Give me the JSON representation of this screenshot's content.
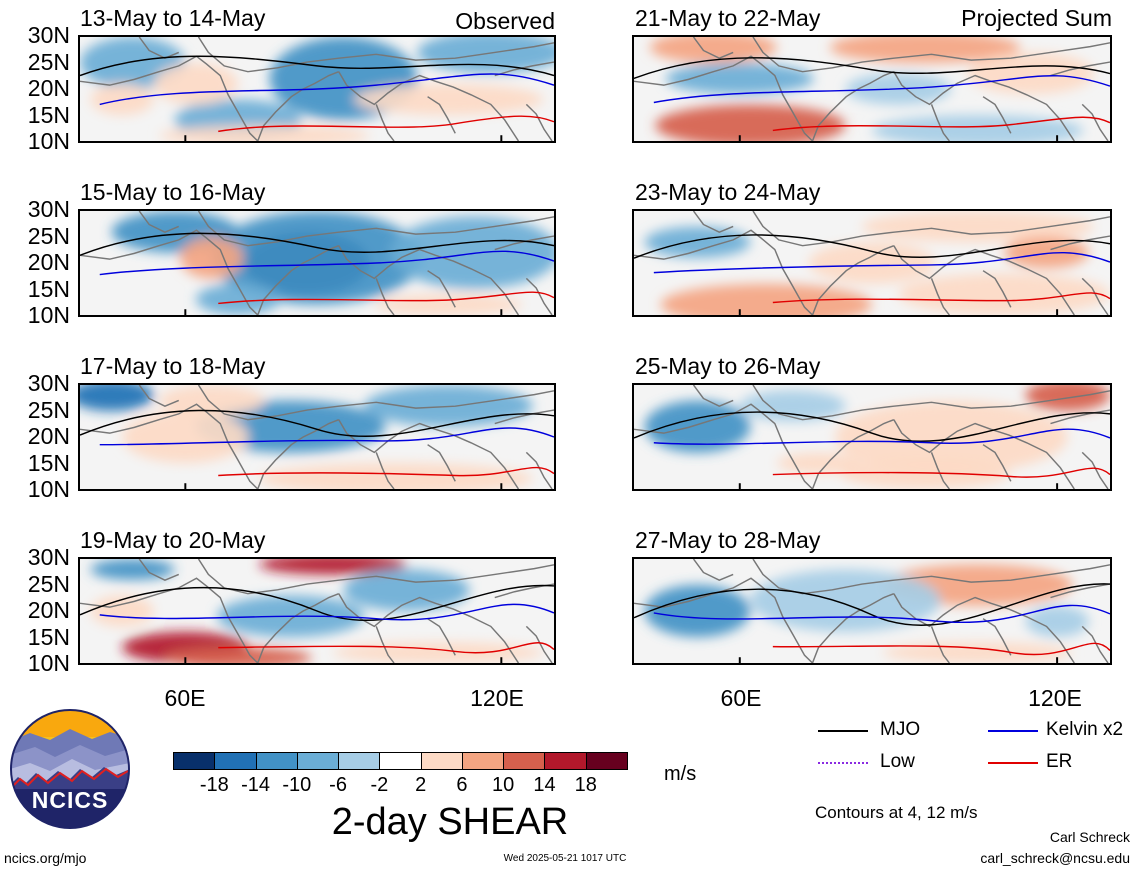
{
  "panels": [
    {
      "date_range": "13-May to 14-May",
      "tag": "Observed",
      "column": "left",
      "row": 0,
      "fields": [
        {
          "lon": 90,
          "lat": 22,
          "rx": 14,
          "ry": 8,
          "value": -12
        },
        {
          "lon": 50,
          "lat": 25,
          "rx": 10,
          "ry": 5,
          "value": -8
        },
        {
          "lon": 118,
          "lat": 27,
          "rx": 14,
          "ry": 4,
          "value": -8
        },
        {
          "lon": 70,
          "lat": 14,
          "rx": 12,
          "ry": 4,
          "value": -6
        },
        {
          "lon": 110,
          "lat": 18,
          "rx": 18,
          "ry": 3,
          "value": 4
        },
        {
          "lon": 62,
          "lat": 21,
          "rx": 8,
          "ry": 4,
          "value": 6
        },
        {
          "lon": 48,
          "lat": 18,
          "rx": 6,
          "ry": 3,
          "value": 4
        },
        {
          "lon": 75,
          "lat": 11,
          "rx": 20,
          "ry": 2,
          "value": 4
        }
      ]
    },
    {
      "date_range": "21-May to 22-May",
      "tag": "Projected Sum",
      "column": "right",
      "row": 0,
      "fields": [
        {
          "lon": 62,
          "lat": 13,
          "rx": 18,
          "ry": 4,
          "value": 14
        },
        {
          "lon": 95,
          "lat": 28,
          "rx": 18,
          "ry": 3,
          "value": 10
        },
        {
          "lon": 55,
          "lat": 28,
          "rx": 12,
          "ry": 3,
          "value": 8
        },
        {
          "lon": 60,
          "lat": 22,
          "rx": 14,
          "ry": 3,
          "value": -6
        },
        {
          "lon": 105,
          "lat": 12,
          "rx": 20,
          "ry": 3,
          "value": -4
        },
        {
          "lon": 115,
          "lat": 23,
          "rx": 12,
          "ry": 4,
          "value": 6
        },
        {
          "lon": 90,
          "lat": 20,
          "rx": 10,
          "ry": 3,
          "value": -4
        }
      ]
    },
    {
      "date_range": "15-May to 16-May",
      "tag": "",
      "column": "left",
      "row": 1,
      "fields": [
        {
          "lon": 83,
          "lat": 20,
          "rx": 12,
          "ry": 6,
          "value": -18
        },
        {
          "lon": 85,
          "lat": 21,
          "rx": 20,
          "ry": 9,
          "value": -10
        },
        {
          "lon": 58,
          "lat": 26,
          "rx": 12,
          "ry": 4,
          "value": -10
        },
        {
          "lon": 115,
          "lat": 22,
          "rx": 16,
          "ry": 7,
          "value": -6
        },
        {
          "lon": 65,
          "lat": 21,
          "rx": 6,
          "ry": 4,
          "value": 8
        },
        {
          "lon": 110,
          "lat": 12,
          "rx": 14,
          "ry": 2,
          "value": 4
        },
        {
          "lon": 70,
          "lat": 13,
          "rx": 8,
          "ry": 3,
          "value": -6
        }
      ]
    },
    {
      "date_range": "23-May to 24-May",
      "tag": "",
      "column": "right",
      "row": 1,
      "fields": [
        {
          "lon": 52,
          "lat": 24,
          "rx": 10,
          "ry": 3,
          "value": -8
        },
        {
          "lon": 65,
          "lat": 12,
          "rx": 20,
          "ry": 4,
          "value": 8
        },
        {
          "lon": 110,
          "lat": 14,
          "rx": 20,
          "ry": 4,
          "value": 6
        },
        {
          "lon": 105,
          "lat": 27,
          "rx": 22,
          "ry": 3,
          "value": 6
        },
        {
          "lon": 85,
          "lat": 20,
          "rx": 12,
          "ry": 4,
          "value": 4
        },
        {
          "lon": 118,
          "lat": 22,
          "rx": 8,
          "ry": 3,
          "value": 8
        }
      ]
    },
    {
      "date_range": "17-May to 18-May",
      "tag": "",
      "column": "left",
      "row": 2,
      "fields": [
        {
          "lon": 80,
          "lat": 22,
          "rx": 18,
          "ry": 5,
          "value": -12
        },
        {
          "lon": 46,
          "lat": 28,
          "rx": 8,
          "ry": 3,
          "value": -16
        },
        {
          "lon": 110,
          "lat": 26,
          "rx": 16,
          "ry": 4,
          "value": -8
        },
        {
          "lon": 60,
          "lat": 20,
          "rx": 12,
          "ry": 5,
          "value": 6
        },
        {
          "lon": 100,
          "lat": 12,
          "rx": 26,
          "ry": 3,
          "value": 4
        },
        {
          "lon": 65,
          "lat": 27,
          "rx": 10,
          "ry": 3,
          "value": 4
        }
      ]
    },
    {
      "date_range": "25-May to 26-May",
      "tag": "",
      "column": "right",
      "row": 2,
      "fields": [
        {
          "lon": 52,
          "lat": 22,
          "rx": 10,
          "ry": 5,
          "value": -10
        },
        {
          "lon": 122,
          "lat": 28,
          "rx": 8,
          "ry": 3,
          "value": 14
        },
        {
          "lon": 100,
          "lat": 20,
          "rx": 22,
          "ry": 7,
          "value": 4
        },
        {
          "lon": 95,
          "lat": 13,
          "rx": 16,
          "ry": 3,
          "value": 6
        },
        {
          "lon": 75,
          "lat": 15,
          "rx": 8,
          "ry": 2,
          "value": 6
        },
        {
          "lon": 70,
          "lat": 26,
          "rx": 10,
          "ry": 3,
          "value": -4
        }
      ]
    },
    {
      "date_range": "19-May to 20-May",
      "tag": "",
      "column": "left",
      "row": 3,
      "fields": [
        {
          "lon": 60,
          "lat": 13,
          "rx": 12,
          "ry": 3,
          "value": 16
        },
        {
          "lon": 88,
          "lat": 29,
          "rx": 14,
          "ry": 2,
          "value": 16
        },
        {
          "lon": 70,
          "lat": 11,
          "rx": 14,
          "ry": 2,
          "value": 12
        },
        {
          "lon": 50,
          "lat": 28,
          "rx": 8,
          "ry": 2,
          "value": -12
        },
        {
          "lon": 80,
          "lat": 19,
          "rx": 14,
          "ry": 4,
          "value": -8
        },
        {
          "lon": 102,
          "lat": 24,
          "rx": 12,
          "ry": 4,
          "value": -6
        },
        {
          "lon": 108,
          "lat": 12,
          "rx": 20,
          "ry": 2,
          "value": 4
        },
        {
          "lon": 48,
          "lat": 20,
          "rx": 6,
          "ry": 3,
          "value": 6
        }
      ]
    },
    {
      "date_range": "27-May to 28-May",
      "tag": "",
      "column": "right",
      "row": 3,
      "fields": [
        {
          "lon": 52,
          "lat": 20,
          "rx": 10,
          "ry": 5,
          "value": -10
        },
        {
          "lon": 105,
          "lat": 25,
          "rx": 18,
          "ry": 4,
          "value": 8
        },
        {
          "lon": 105,
          "lat": 12,
          "rx": 18,
          "ry": 2,
          "value": 4
        },
        {
          "lon": 80,
          "lat": 22,
          "rx": 18,
          "ry": 6,
          "value": -4
        },
        {
          "lon": 120,
          "lat": 18,
          "rx": 6,
          "ry": 3,
          "value": -4
        }
      ]
    }
  ],
  "lat_labels": [
    "30N",
    "25N",
    "20N",
    "15N",
    "10N"
  ],
  "lon_labels": [
    "60E",
    "120E"
  ],
  "colorbar": {
    "labels": [
      "-18",
      "-14",
      "-10",
      "-6",
      "-2",
      "2",
      "6",
      "10",
      "14",
      "18"
    ],
    "colors": [
      "#08306b",
      "#2171b5",
      "#4292c6",
      "#6baed6",
      "#a6cde6",
      "#ffffff",
      "#fddac5",
      "#f4a582",
      "#d6604d",
      "#b2182b",
      "#67001f"
    ],
    "units": "m/s",
    "title": "2-day SHEAR"
  },
  "legend": [
    {
      "label": "MJO",
      "color": "#000000"
    },
    {
      "label": "Kelvin x2",
      "color": "#0000dd"
    },
    {
      "label": "Low",
      "color": "#8a2be2"
    },
    {
      "label": "ER",
      "color": "#e00000"
    }
  ],
  "contours_note": "Contours at 4, 12 m/s",
  "logo_text": "NCICS",
  "footer": {
    "url": "ncics.org/mjo",
    "timestamp": "Wed 2025-05-21 1017 UTC",
    "author": "Carl Schreck",
    "email": "carl_schreck@ncsu.edu"
  }
}
